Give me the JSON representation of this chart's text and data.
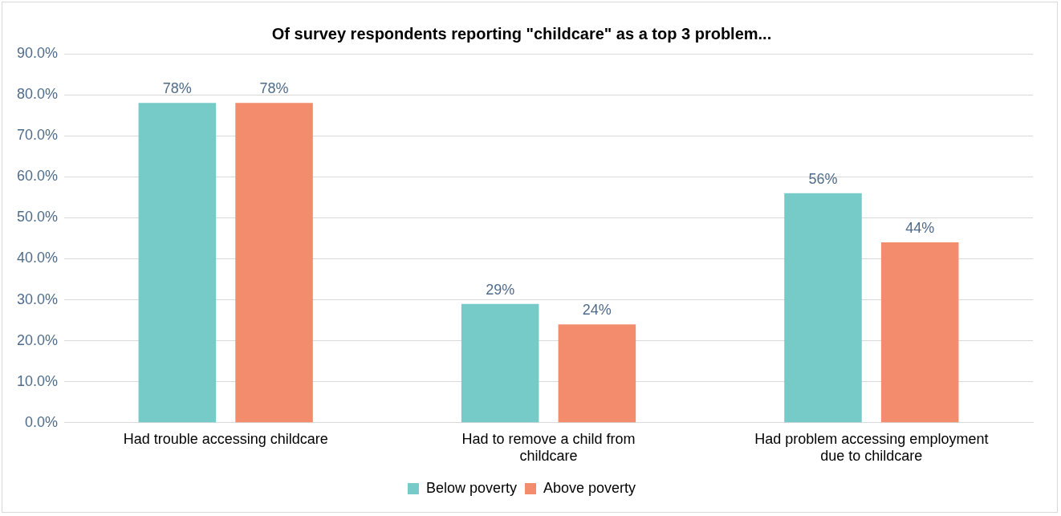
{
  "chart_data": {
    "type": "bar",
    "title": "Of survey respondents reporting \"childcare\" as a top 3 problem...",
    "categories": [
      "Had trouble accessing childcare",
      "Had to remove a child from childcare",
      "Had problem accessing employment due to childcare"
    ],
    "series": [
      {
        "name": "Below poverty",
        "color": "#76cbc9",
        "values": [
          78,
          29,
          56
        ],
        "value_labels": [
          "78%",
          "29%",
          "56%"
        ]
      },
      {
        "name": "Above poverty",
        "color": "#f28c6c",
        "values": [
          78,
          24,
          44
        ],
        "value_labels": [
          "78%",
          "24%",
          "44%"
        ]
      }
    ],
    "ylim": [
      0,
      90
    ],
    "yticks": [
      {
        "value": 0,
        "label": "0.0%"
      },
      {
        "value": 10,
        "label": "10.0%"
      },
      {
        "value": 20,
        "label": "20.0%"
      },
      {
        "value": 30,
        "label": "30.0%"
      },
      {
        "value": 40,
        "label": "40.0%"
      },
      {
        "value": 50,
        "label": "50.0%"
      },
      {
        "value": 60,
        "label": "60.0%"
      },
      {
        "value": 70,
        "label": "70.0%"
      },
      {
        "value": 80,
        "label": "80.0%"
      },
      {
        "value": 90,
        "label": "90.0%"
      }
    ],
    "grid": "y",
    "legend": "bottom"
  }
}
